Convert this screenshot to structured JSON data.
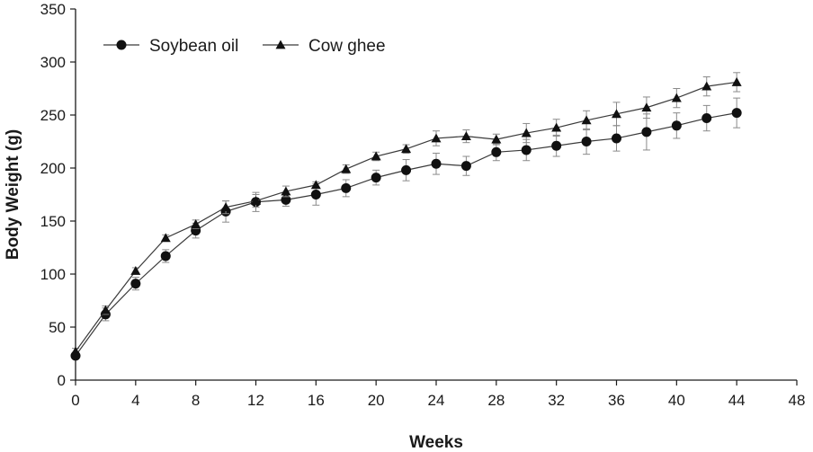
{
  "chart_data": {
    "type": "line",
    "title": "",
    "xlabel": "Weeks",
    "ylabel": "Body Weight (g)",
    "xlim": [
      0,
      48
    ],
    "ylim": [
      0,
      350
    ],
    "x_ticks": [
      0,
      4,
      8,
      12,
      16,
      20,
      24,
      28,
      32,
      36,
      40,
      44,
      48
    ],
    "y_ticks": [
      0,
      50,
      100,
      150,
      200,
      250,
      300,
      350
    ],
    "grid": false,
    "legend_position": "top-left",
    "series": [
      {
        "name": "Soybean oil",
        "marker": "circle",
        "x": [
          0,
          2,
          4,
          6,
          8,
          10,
          12,
          14,
          16,
          18,
          20,
          22,
          24,
          26,
          28,
          30,
          32,
          34,
          36,
          38,
          40,
          42,
          44
        ],
        "y": [
          23,
          62,
          91,
          117,
          141,
          159,
          168,
          170,
          175,
          181,
          191,
          198,
          204,
          202,
          215,
          217,
          221,
          225,
          228,
          234,
          240,
          247,
          252
        ],
        "error": [
          3,
          6,
          6,
          6,
          7,
          10,
          9,
          6,
          10,
          8,
          7,
          10,
          10,
          9,
          8,
          10,
          10,
          12,
          12,
          17,
          12,
          12,
          14
        ]
      },
      {
        "name": "Cow ghee",
        "marker": "triangle",
        "x": [
          0,
          2,
          4,
          6,
          8,
          10,
          12,
          14,
          16,
          18,
          20,
          22,
          24,
          26,
          28,
          30,
          32,
          34,
          36,
          38,
          40,
          42,
          44
        ],
        "y": [
          27,
          66,
          103,
          134,
          147,
          163,
          169,
          178,
          184,
          199,
          211,
          218,
          228,
          230,
          227,
          233,
          238,
          245,
          251,
          257,
          266,
          277,
          281
        ],
        "error": [
          3,
          4,
          3,
          3,
          4,
          6,
          6,
          5,
          3,
          4,
          4,
          4,
          7,
          6,
          5,
          9,
          8,
          9,
          11,
          10,
          9,
          9,
          9
        ]
      }
    ]
  }
}
